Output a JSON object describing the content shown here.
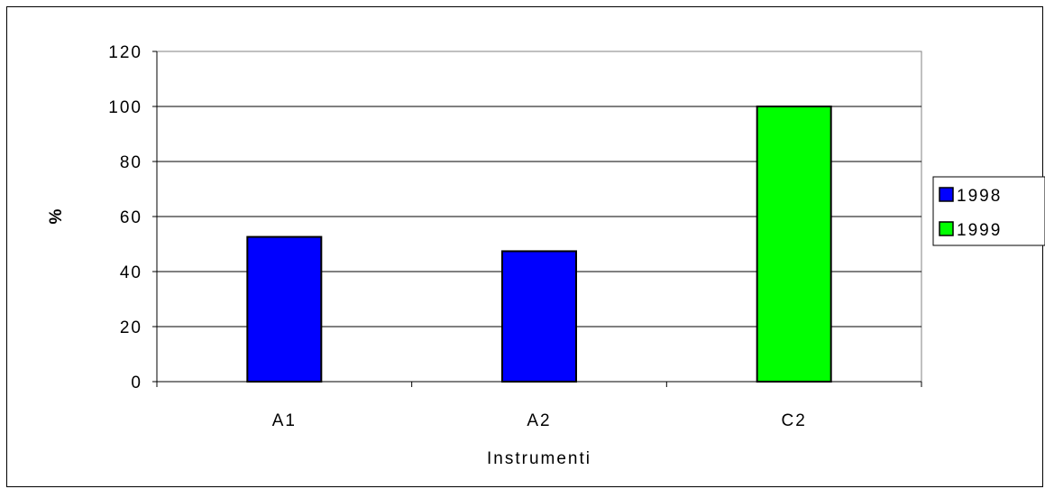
{
  "chart_data": {
    "type": "bar",
    "title": "",
    "xlabel": "Instrumenti",
    "ylabel": "%",
    "categories": [
      "A1",
      "A2",
      "C2"
    ],
    "series": [
      {
        "name": "1998",
        "color": "#0000FF",
        "values": [
          52.6,
          47.4,
          null
        ]
      },
      {
        "name": "1999",
        "color": "#00FF00",
        "values": [
          null,
          null,
          100
        ]
      }
    ],
    "ylim": [
      0,
      120
    ],
    "yticks": [
      0,
      20,
      40,
      60,
      80,
      100,
      120
    ],
    "grid": true,
    "legend_position": "right"
  }
}
